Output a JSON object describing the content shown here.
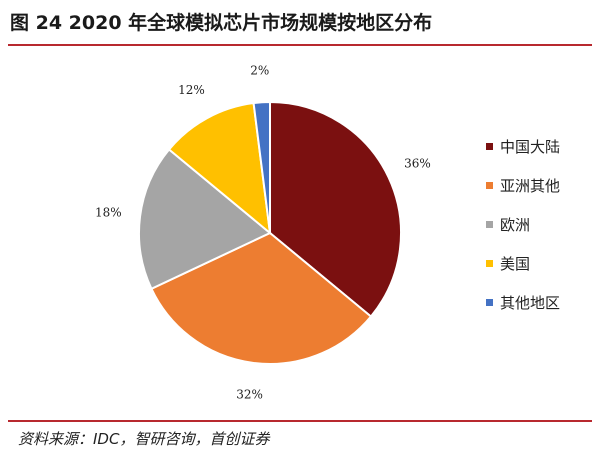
{
  "title": "图 24 2020 年全球模拟芯片市场规模按地区分布",
  "source": "资料来源：IDC，智研咨询，首创证券",
  "chart_data": {
    "type": "pie",
    "title": "图 24 2020 年全球模拟芯片市场规模按地区分布",
    "legend_position": "right",
    "start_angle_deg": 0,
    "direction": "clockwise",
    "slices": [
      {
        "name": "中国大陆",
        "value": 36,
        "label": "36%",
        "color": "#7b1010"
      },
      {
        "name": "亚洲其他",
        "value": 32,
        "label": "32%",
        "color": "#ed7d31"
      },
      {
        "name": "欧洲",
        "value": 18,
        "label": "18%",
        "color": "#a5a5a5"
      },
      {
        "name": "美国",
        "value": 12,
        "label": "12%",
        "color": "#ffc000"
      },
      {
        "name": "其他地区",
        "value": 2,
        "label": "2%",
        "color": "#4472c4"
      }
    ]
  }
}
